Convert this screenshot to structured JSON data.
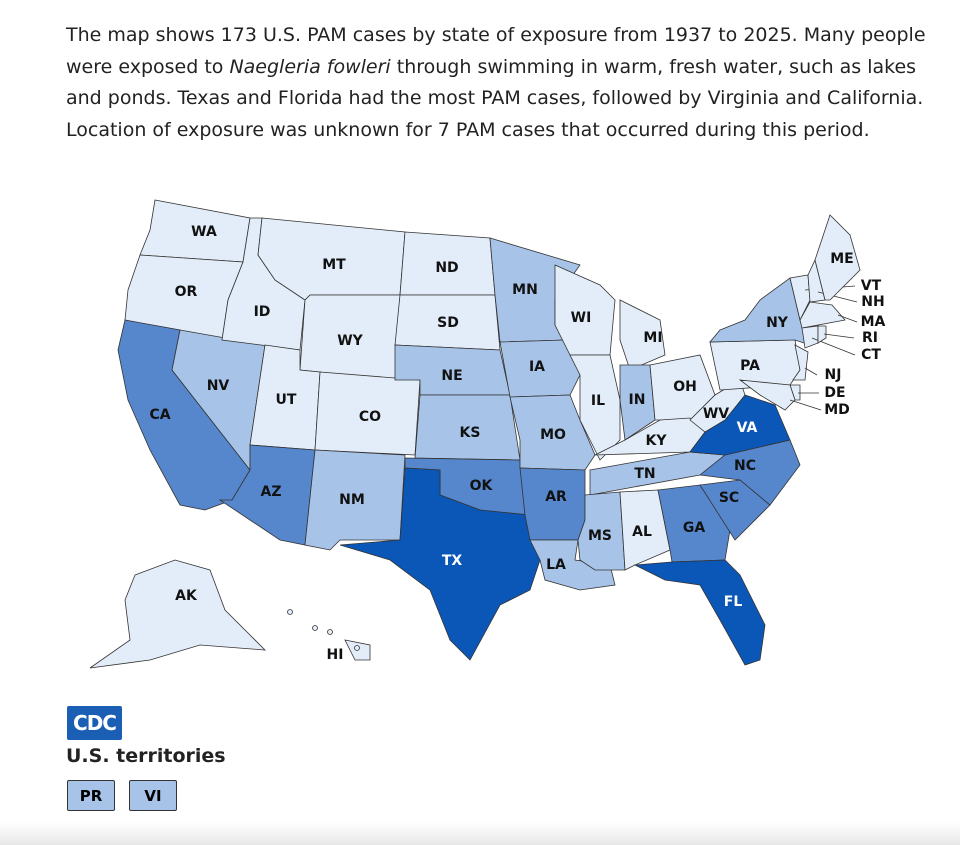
{
  "text": {
    "before": "The map shows 173 U.S. PAM cases by state of exposure from 1937 to 2025. Many people were exposed to ",
    "italic": "Naegleria fowleri",
    "after": " through swimming in warm, fresh water, such as lakes and ponds. Texas and Florida had the most PAM cases, followed by Virginia and California. Location of exposure was unknown for 7 PAM cases that occurred during this period."
  },
  "map": {
    "states": [
      {
        "abbr": "WA",
        "color": "#e3edf9"
      },
      {
        "abbr": "OR",
        "color": "#e3edf9"
      },
      {
        "abbr": "CA",
        "color": "#5687cc"
      },
      {
        "abbr": "NV",
        "color": "#a7c4e8"
      },
      {
        "abbr": "ID",
        "color": "#e3edf9"
      },
      {
        "abbr": "MT",
        "color": "#e3edf9"
      },
      {
        "abbr": "WY",
        "color": "#e3edf9"
      },
      {
        "abbr": "UT",
        "color": "#e3edf9"
      },
      {
        "abbr": "CO",
        "color": "#e3edf9"
      },
      {
        "abbr": "AZ",
        "color": "#5687cc"
      },
      {
        "abbr": "NM",
        "color": "#a7c4e8"
      },
      {
        "abbr": "ND",
        "color": "#e3edf9"
      },
      {
        "abbr": "SD",
        "color": "#e3edf9"
      },
      {
        "abbr": "NE",
        "color": "#a7c4e8"
      },
      {
        "abbr": "KS",
        "color": "#a7c4e8"
      },
      {
        "abbr": "OK",
        "color": "#5687cc"
      },
      {
        "abbr": "TX",
        "color": "#0b57b8"
      },
      {
        "abbr": "MN",
        "color": "#a7c4e8"
      },
      {
        "abbr": "IA",
        "color": "#a7c4e8"
      },
      {
        "abbr": "MO",
        "color": "#a7c4e8"
      },
      {
        "abbr": "AR",
        "color": "#5687cc"
      },
      {
        "abbr": "LA",
        "color": "#a7c4e8"
      },
      {
        "abbr": "WI",
        "color": "#e3edf9"
      },
      {
        "abbr": "IL",
        "color": "#e3edf9"
      },
      {
        "abbr": "MI",
        "color": "#e3edf9"
      },
      {
        "abbr": "IN",
        "color": "#a7c4e8"
      },
      {
        "abbr": "OH",
        "color": "#e3edf9"
      },
      {
        "abbr": "KY",
        "color": "#e3edf9"
      },
      {
        "abbr": "TN",
        "color": "#a7c4e8"
      },
      {
        "abbr": "MS",
        "color": "#a7c4e8"
      },
      {
        "abbr": "AL",
        "color": "#e3edf9"
      },
      {
        "abbr": "GA",
        "color": "#5687cc"
      },
      {
        "abbr": "FL",
        "color": "#0b57b8"
      },
      {
        "abbr": "SC",
        "color": "#5687cc"
      },
      {
        "abbr": "NC",
        "color": "#5687cc"
      },
      {
        "abbr": "VA",
        "color": "#0b57b8"
      },
      {
        "abbr": "WV",
        "color": "#e3edf9"
      },
      {
        "abbr": "PA",
        "color": "#e3edf9"
      },
      {
        "abbr": "NY",
        "color": "#a7c4e8"
      },
      {
        "abbr": "NJ",
        "color": "#e3edf9"
      },
      {
        "abbr": "DE",
        "color": "#e3edf9"
      },
      {
        "abbr": "MD",
        "color": "#e3edf9"
      },
      {
        "abbr": "VT",
        "color": "#e3edf9"
      },
      {
        "abbr": "NH",
        "color": "#e3edf9"
      },
      {
        "abbr": "ME",
        "color": "#e3edf9"
      },
      {
        "abbr": "MA",
        "color": "#e3edf9"
      },
      {
        "abbr": "CT",
        "color": "#e3edf9"
      },
      {
        "abbr": "RI",
        "color": "#e3edf9"
      },
      {
        "abbr": "AK",
        "color": "#e3edf9"
      },
      {
        "abbr": "HI",
        "color": "#e3edf9"
      }
    ]
  },
  "logo": "CDC",
  "territories": {
    "title": "U.S. territories",
    "items": [
      {
        "abbr": "PR",
        "color": "#a7c4e8"
      },
      {
        "abbr": "VI",
        "color": "#a7c4e8"
      }
    ]
  }
}
